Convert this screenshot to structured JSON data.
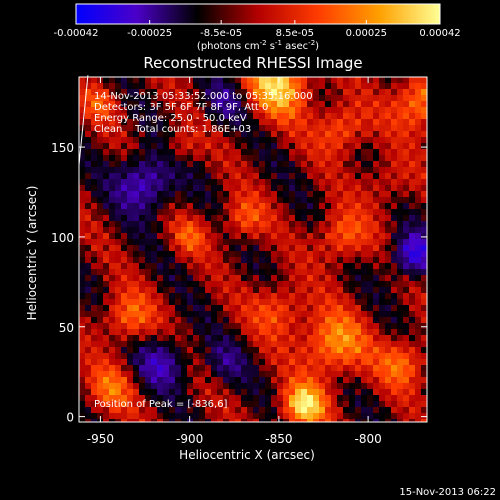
{
  "colorbar": {
    "tick_labels": [
      "-0.00042",
      "-0.00025",
      "-8.5e-05",
      "8.5e-05",
      "0.00025",
      "0.00042"
    ],
    "tick_values": [
      -0.00042,
      -0.00025,
      -8.5e-05,
      8.5e-05,
      0.00025,
      0.00042
    ],
    "range": [
      -0.00042,
      0.00042
    ],
    "unit_main": "(photons cm",
    "unit_sup1": "-2",
    "unit_mid": " s",
    "unit_sup2": "-1",
    "unit_end": " asec",
    "unit_sup3": "-2",
    "unit_close": ")",
    "colors": [
      "#0000ff",
      "#4b00c8",
      "#000000",
      "#b40000",
      "#ff3c00",
      "#ffa000",
      "#ffff96"
    ]
  },
  "chart_data": {
    "type": "heatmap",
    "title": "Reconstructed RHESSI Image",
    "xlabel": "Heliocentric X (arcsec)",
    "ylabel": "Heliocentric Y (arcsec)",
    "xlim": [
      -962,
      -767
    ],
    "ylim": [
      -3,
      189
    ],
    "x_ticks": [
      -950,
      -900,
      -850,
      -800
    ],
    "x_tick_labels": [
      "-950",
      "-900",
      "-850",
      "-800"
    ],
    "y_ticks": [
      0,
      50,
      100,
      150
    ],
    "y_tick_labels": [
      "0",
      "50",
      "100",
      "150"
    ],
    "peak_position": [
      -836,
      6
    ],
    "limb_curve_y": [
      190,
      140
    ],
    "annotations": [
      "14-Nov-2013 05:33:52.000 to 05:35:16.000",
      "Detectors: 3F 5F 6F 7F 8F 9F, Att 0",
      "Energy Range: 25.0 - 50.0 keV",
      "Clean    Total counts: 1.86E+03",
      "Position of Peak = [-836,6]"
    ]
  },
  "timestamp": "15-Nov-2013 06:22"
}
